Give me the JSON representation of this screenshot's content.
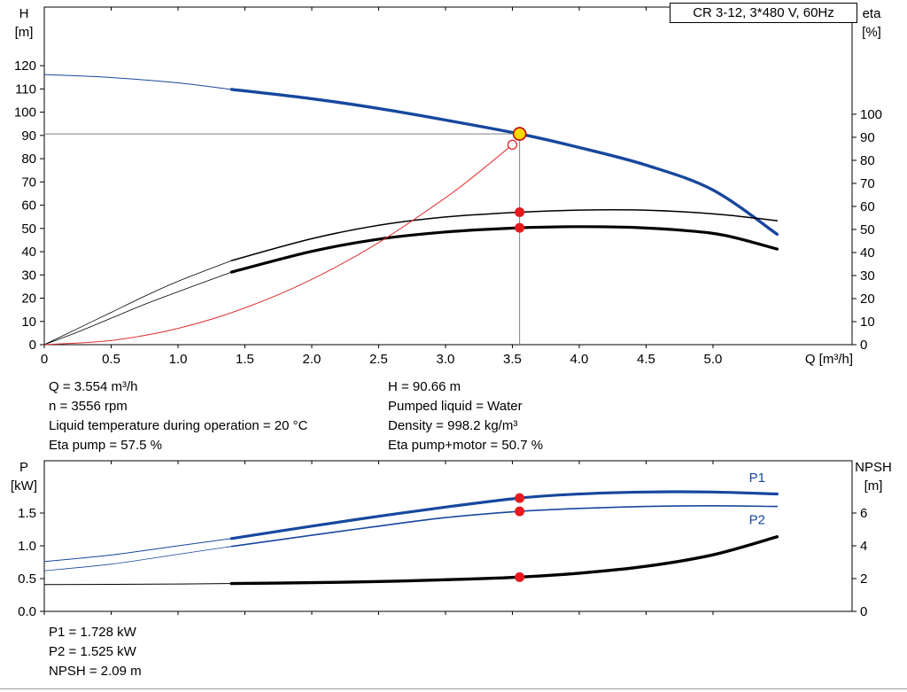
{
  "title_box": {
    "label": "CR 3-12, 3*480 V, 60Hz"
  },
  "colors": {
    "curve_blue": "#17479e",
    "curve_black": "#000000",
    "curve_red": "#e03030",
    "marker_red": "#e8191d",
    "marker_yellow": "#ffd800",
    "crosshair_gray": "#7f7f7f"
  },
  "info": {
    "top_left": [
      "Q = 3.554 m³/h",
      "n = 3556 rpm",
      "Liquid temperature during operation = 20 °C",
      "Eta pump = 57.5 %"
    ],
    "top_right": [
      "H = 90.66 m",
      "Pumped liquid = Water",
      "Density = 998.2 kg/m³",
      "Eta pump+motor = 50.7 %"
    ],
    "bottom": [
      "P1 = 1.728 kW",
      "P2 = 1.525 kW",
      "NPSH = 2.09 m"
    ]
  },
  "chart_data": [
    {
      "type": "line",
      "name": "qh-eta-chart",
      "title": "CR 3-12, 3*480 V, 60Hz",
      "x_axis": {
        "label": "Q [m³/h]",
        "min": 0,
        "max": 6.04,
        "ticks_to": 5.0,
        "tick_step": 0.5,
        "decimals": 1,
        "zero_plain": true,
        "show_tick_labels": true
      },
      "left_axis": {
        "title": "H",
        "unit": "[m]",
        "min": 0,
        "max": 145.2,
        "ticks_to": 120,
        "tick_step": 10,
        "decimals": 0
      },
      "right_axis": {
        "title": "eta",
        "unit": "[%]",
        "min": 0,
        "max": 146.5,
        "ticks_to": 100,
        "tick_step": 10,
        "decimals": 0
      },
      "series": [
        {
          "name": "head-curve",
          "axis": "left",
          "color": "#17479e",
          "width": 3.4,
          "thin_width": 1,
          "thick_from": 1.4,
          "points": [
            [
              0,
              116.2
            ],
            [
              0.5,
              114.9
            ],
            [
              1.0,
              112.6
            ],
            [
              1.4,
              109.8
            ],
            [
              2.0,
              105.8
            ],
            [
              2.5,
              101.6
            ],
            [
              3.0,
              96.6
            ],
            [
              3.554,
              90.66
            ],
            [
              4.0,
              84.8
            ],
            [
              4.5,
              77.2
            ],
            [
              5.0,
              66.5
            ],
            [
              5.48,
              47.5
            ]
          ]
        },
        {
          "name": "eta-pump-curve",
          "axis": "right",
          "color": "#000000",
          "width": 1.5,
          "thin_width": 0.8,
          "thick_from": 1.4,
          "points": [
            [
              0,
              0
            ],
            [
              0.25,
              7
            ],
            [
              0.5,
              14
            ],
            [
              0.75,
              21
            ],
            [
              1.0,
              27.5
            ],
            [
              1.4,
              36.5
            ],
            [
              2.0,
              46
            ],
            [
              2.5,
              51.8
            ],
            [
              3.0,
              55.4
            ],
            [
              3.554,
              57.5
            ],
            [
              4.0,
              58.4
            ],
            [
              4.4,
              58.5
            ],
            [
              4.8,
              57.6
            ],
            [
              5.1,
              56.3
            ],
            [
              5.48,
              53.8
            ]
          ]
        },
        {
          "name": "eta-pump-motor-curve",
          "axis": "right",
          "color": "#000000",
          "width": 3.2,
          "thin_width": 0.8,
          "thick_from": 1.4,
          "points": [
            [
              0,
              0
            ],
            [
              0.25,
              5.5
            ],
            [
              0.5,
              11.5
            ],
            [
              0.75,
              17.5
            ],
            [
              1.0,
              23
            ],
            [
              1.4,
              31.5
            ],
            [
              2.0,
              40.5
            ],
            [
              2.5,
              45.8
            ],
            [
              3.0,
              48.9
            ],
            [
              3.554,
              50.7
            ],
            [
              4.0,
              51.2
            ],
            [
              4.4,
              50.9
            ],
            [
              4.8,
              49.5
            ],
            [
              5.1,
              47.3
            ],
            [
              5.48,
              41.5
            ]
          ]
        },
        {
          "name": "system-curve",
          "axis": "left",
          "color": "#e03030",
          "width": 1,
          "points": [
            [
              0,
              0
            ],
            [
              0.5,
              1.8
            ],
            [
              1.0,
              7.0
            ],
            [
              1.5,
              15.8
            ],
            [
              2.0,
              28.1
            ],
            [
              2.5,
              43.9
            ],
            [
              3.0,
              63.2
            ],
            [
              3.25,
              74.2
            ],
            [
              3.5,
              86.0
            ]
          ]
        }
      ],
      "crosshair": {
        "q": 3.554,
        "h": 90.66
      },
      "markers": [
        {
          "name": "system-curve-point",
          "q": 3.5,
          "v": 86.0,
          "axis": "left",
          "r": 5,
          "fill": "#ffffff",
          "stroke": "#e03030",
          "sw": 1.4
        },
        {
          "name": "eta-pump-point",
          "q": 3.554,
          "v": 57.5,
          "axis": "right",
          "r": 5.5,
          "fill": "#e8191d"
        },
        {
          "name": "eta-pump-motor-point",
          "q": 3.554,
          "v": 50.7,
          "axis": "right",
          "r": 5.5,
          "fill": "#e8191d"
        },
        {
          "name": "duty-point",
          "q": 3.554,
          "v": 90.66,
          "axis": "left",
          "r": 7,
          "fill": "#ffd800",
          "stroke": "#c00000",
          "sw": 1.6
        }
      ]
    },
    {
      "type": "line",
      "name": "power-npsh-chart",
      "x_axis": {
        "label": "",
        "min": 0,
        "max": 6.04,
        "ticks_to": 5.0,
        "tick_step": 0.5,
        "decimals": 1,
        "zero_plain": true,
        "show_tick_labels": false
      },
      "left_axis": {
        "title": "P",
        "unit": "[kW]",
        "min": 0,
        "max": 2.297,
        "ticks_to": 1.5,
        "tick_step": 0.5,
        "decimals": 1
      },
      "right_axis": {
        "title": "NPSH",
        "unit": "[m]",
        "min": 0,
        "max": 9.19,
        "ticks_to": 6,
        "tick_step": 2,
        "decimals": 0
      },
      "series": [
        {
          "name": "p1-curve",
          "axis": "left",
          "color": "#17479e",
          "width": 3.2,
          "thin_width": 1,
          "thick_from": 1.4,
          "points": [
            [
              0,
              0.76
            ],
            [
              0.5,
              0.86
            ],
            [
              1.0,
              1.0
            ],
            [
              1.4,
              1.11
            ],
            [
              2.0,
              1.3
            ],
            [
              2.5,
              1.45
            ],
            [
              3.0,
              1.59
            ],
            [
              3.554,
              1.728
            ],
            [
              4.0,
              1.79
            ],
            [
              4.5,
              1.82
            ],
            [
              5.0,
              1.82
            ],
            [
              5.48,
              1.79
            ]
          ]
        },
        {
          "name": "p2-curve",
          "axis": "left",
          "color": "#17479e",
          "width": 1.6,
          "thin_width": 0.8,
          "thick_from": 1.4,
          "points": [
            [
              0,
              0.62
            ],
            [
              0.5,
              0.72
            ],
            [
              1.0,
              0.87
            ],
            [
              1.4,
              0.99
            ],
            [
              2.0,
              1.16
            ],
            [
              2.5,
              1.3
            ],
            [
              3.0,
              1.43
            ],
            [
              3.554,
              1.525
            ],
            [
              4.0,
              1.57
            ],
            [
              4.5,
              1.6
            ],
            [
              5.0,
              1.61
            ],
            [
              5.48,
              1.6
            ]
          ]
        },
        {
          "name": "npsh-curve",
          "axis": "right",
          "color": "#000000",
          "width": 3.4,
          "thin_width": 1,
          "thick_from": 1.4,
          "points": [
            [
              0,
              1.63
            ],
            [
              0.5,
              1.65
            ],
            [
              1.0,
              1.67
            ],
            [
              1.4,
              1.7
            ],
            [
              2.0,
              1.75
            ],
            [
              2.5,
              1.82
            ],
            [
              3.0,
              1.93
            ],
            [
              3.554,
              2.09
            ],
            [
              4.0,
              2.33
            ],
            [
              4.5,
              2.75
            ],
            [
              5.0,
              3.45
            ],
            [
              5.48,
              4.55
            ]
          ]
        }
      ],
      "markers": [
        {
          "name": "p1-point",
          "q": 3.554,
          "v": 1.728,
          "axis": "left",
          "r": 5.5,
          "fill": "#e8191d"
        },
        {
          "name": "p2-point",
          "q": 3.554,
          "v": 1.525,
          "axis": "left",
          "r": 5.5,
          "fill": "#e8191d"
        },
        {
          "name": "npsh-point",
          "q": 3.554,
          "v": 2.09,
          "axis": "right",
          "r": 5.5,
          "fill": "#e8191d"
        }
      ],
      "labels": [
        {
          "name": "p1-curve-label",
          "text": "P1",
          "q": 5.33,
          "v": 1.97,
          "axis": "left",
          "color": "#17479e"
        },
        {
          "name": "p2-curve-label",
          "text": "P2",
          "q": 5.33,
          "v": 1.33,
          "axis": "left",
          "color": "#17479e"
        }
      ]
    }
  ]
}
